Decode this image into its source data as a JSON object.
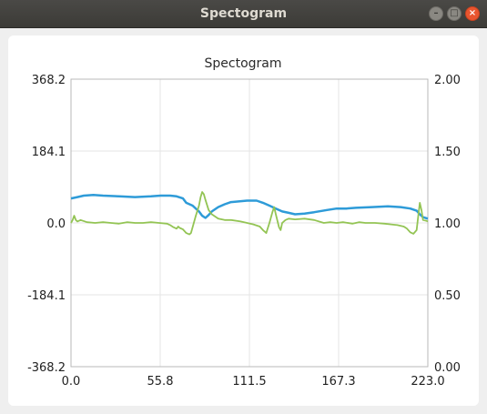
{
  "window": {
    "title": "Spectogram",
    "buttons": {
      "minimize": "–",
      "maximize": "□",
      "close": "×"
    }
  },
  "colors": {
    "blue_series": "#2e9bd8",
    "green_series": "#93c454",
    "grid": "#e4e4e4",
    "axis": "#b9b9b9"
  },
  "chart_data": {
    "type": "line",
    "title": "Spectogram",
    "x_ticks": [
      "0.0",
      "55.8",
      "111.5",
      "167.3",
      "223.0"
    ],
    "y_left_ticks": [
      "368.2",
      "184.1",
      "0.0",
      "-184.1",
      "-368.2"
    ],
    "y_right_ticks": [
      "2.00",
      "1.50",
      "1.00",
      "0.50",
      "0.00"
    ],
    "xlim": [
      0,
      223
    ],
    "ylim_left": [
      -368.2,
      368.2
    ],
    "ylim_right": [
      0,
      2
    ],
    "grid": true,
    "series": [
      {
        "axis": "right",
        "color": "#2e9bd8",
        "points": [
          [
            0,
            1.17
          ],
          [
            4,
            1.18
          ],
          [
            8,
            1.19
          ],
          [
            14,
            1.195
          ],
          [
            20,
            1.19
          ],
          [
            30,
            1.185
          ],
          [
            40,
            1.18
          ],
          [
            50,
            1.185
          ],
          [
            56,
            1.19
          ],
          [
            62,
            1.19
          ],
          [
            66,
            1.185
          ],
          [
            70,
            1.17
          ],
          [
            72,
            1.14
          ],
          [
            76,
            1.12
          ],
          [
            80,
            1.08
          ],
          [
            82,
            1.05
          ],
          [
            84,
            1.035
          ],
          [
            86,
            1.055
          ],
          [
            88,
            1.08
          ],
          [
            92,
            1.11
          ],
          [
            96,
            1.13
          ],
          [
            100,
            1.145
          ],
          [
            110,
            1.155
          ],
          [
            116,
            1.155
          ],
          [
            120,
            1.14
          ],
          [
            124,
            1.12
          ],
          [
            128,
            1.1
          ],
          [
            132,
            1.08
          ],
          [
            136,
            1.07
          ],
          [
            140,
            1.06
          ],
          [
            146,
            1.065
          ],
          [
            152,
            1.075
          ],
          [
            160,
            1.09
          ],
          [
            166,
            1.1
          ],
          [
            172,
            1.1
          ],
          [
            178,
            1.105
          ],
          [
            188,
            1.11
          ],
          [
            198,
            1.115
          ],
          [
            206,
            1.11
          ],
          [
            212,
            1.1
          ],
          [
            216,
            1.085
          ],
          [
            218,
            1.06
          ],
          [
            220,
            1.04
          ],
          [
            223,
            1.03
          ]
        ]
      },
      {
        "axis": "right",
        "color": "#93c454",
        "points": [
          [
            0,
            1.0
          ],
          [
            1,
            1.02
          ],
          [
            2,
            1.05
          ],
          [
            3,
            1.02
          ],
          [
            4,
            1.01
          ],
          [
            6,
            1.02
          ],
          [
            10,
            1.005
          ],
          [
            15,
            1.0
          ],
          [
            20,
            1.005
          ],
          [
            25,
            1.0
          ],
          [
            30,
            0.995
          ],
          [
            35,
            1.005
          ],
          [
            40,
            1.0
          ],
          [
            45,
            1.0
          ],
          [
            50,
            1.005
          ],
          [
            55,
            1.0
          ],
          [
            60,
            0.995
          ],
          [
            62,
            0.985
          ],
          [
            64,
            0.97
          ],
          [
            66,
            0.96
          ],
          [
            67,
            0.975
          ],
          [
            68,
            0.965
          ],
          [
            70,
            0.955
          ],
          [
            72,
            0.93
          ],
          [
            74,
            0.92
          ],
          [
            75,
            0.93
          ],
          [
            76,
            0.97
          ],
          [
            78,
            1.05
          ],
          [
            80,
            1.12
          ],
          [
            81,
            1.18
          ],
          [
            82,
            1.215
          ],
          [
            83,
            1.2
          ],
          [
            84,
            1.16
          ],
          [
            86,
            1.09
          ],
          [
            88,
            1.06
          ],
          [
            92,
            1.03
          ],
          [
            96,
            1.02
          ],
          [
            100,
            1.02
          ],
          [
            106,
            1.01
          ],
          [
            110,
            1.0
          ],
          [
            114,
            0.99
          ],
          [
            118,
            0.975
          ],
          [
            120,
            0.95
          ],
          [
            122,
            0.93
          ],
          [
            124,
            1.0
          ],
          [
            126,
            1.08
          ],
          [
            127,
            1.11
          ],
          [
            128,
            1.06
          ],
          [
            130,
            0.97
          ],
          [
            131,
            0.95
          ],
          [
            132,
            1.0
          ],
          [
            134,
            1.02
          ],
          [
            136,
            1.03
          ],
          [
            140,
            1.025
          ],
          [
            146,
            1.03
          ],
          [
            152,
            1.02
          ],
          [
            158,
            1.0
          ],
          [
            162,
            1.005
          ],
          [
            166,
            1.0
          ],
          [
            170,
            1.005
          ],
          [
            176,
            0.995
          ],
          [
            180,
            1.005
          ],
          [
            184,
            1.0
          ],
          [
            190,
            1.0
          ],
          [
            196,
            0.995
          ],
          [
            200,
            0.99
          ],
          [
            204,
            0.985
          ],
          [
            208,
            0.975
          ],
          [
            210,
            0.96
          ],
          [
            212,
            0.935
          ],
          [
            214,
            0.925
          ],
          [
            216,
            0.95
          ],
          [
            217,
            1.05
          ],
          [
            218,
            1.14
          ],
          [
            219,
            1.09
          ],
          [
            220,
            1.02
          ],
          [
            222,
            1.015
          ],
          [
            223,
            1.01
          ]
        ]
      }
    ]
  }
}
